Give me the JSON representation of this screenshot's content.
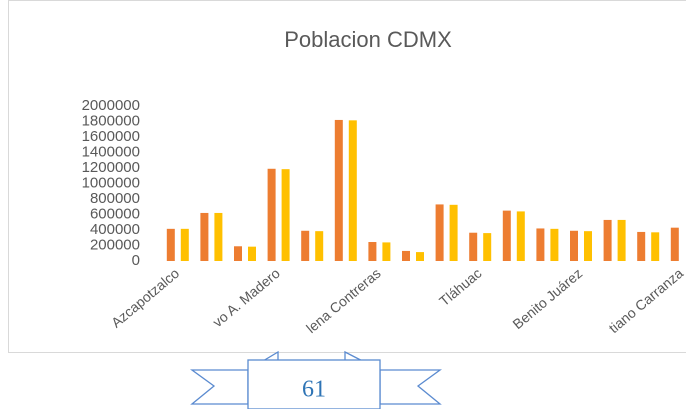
{
  "chart_data": {
    "type": "bar",
    "title": "Poblacion CDMX",
    "categories": [
      "Azcapotzalco",
      null,
      null,
      "vo A. Madero",
      null,
      null,
      "lena Contreras",
      null,
      null,
      "Tláhuac",
      null,
      null,
      "Benito Juárez",
      null,
      null,
      "tiano Carranza"
    ],
    "series": [
      {
        "color": "#ed7d31",
        "values": [
          415000,
          620000,
          190000,
          1190000,
          390000,
          1820000,
          245000,
          130000,
          730000,
          365000,
          650000,
          420000,
          390000,
          530000,
          375000,
          430000
        ]
      },
      {
        "color": "#ffc000",
        "values": [
          415000,
          620000,
          185000,
          1185000,
          385000,
          1815000,
          240000,
          115000,
          725000,
          360000,
          640000,
          415000,
          385000,
          530000,
          370000,
          null
        ]
      }
    ],
    "ylim": [
      0,
      2000000
    ],
    "yticks": [
      0,
      200000,
      400000,
      600000,
      800000,
      1000000,
      1200000,
      1400000,
      1600000,
      1800000,
      2000000
    ],
    "grid": false
  },
  "banner": {
    "text": 61
  }
}
